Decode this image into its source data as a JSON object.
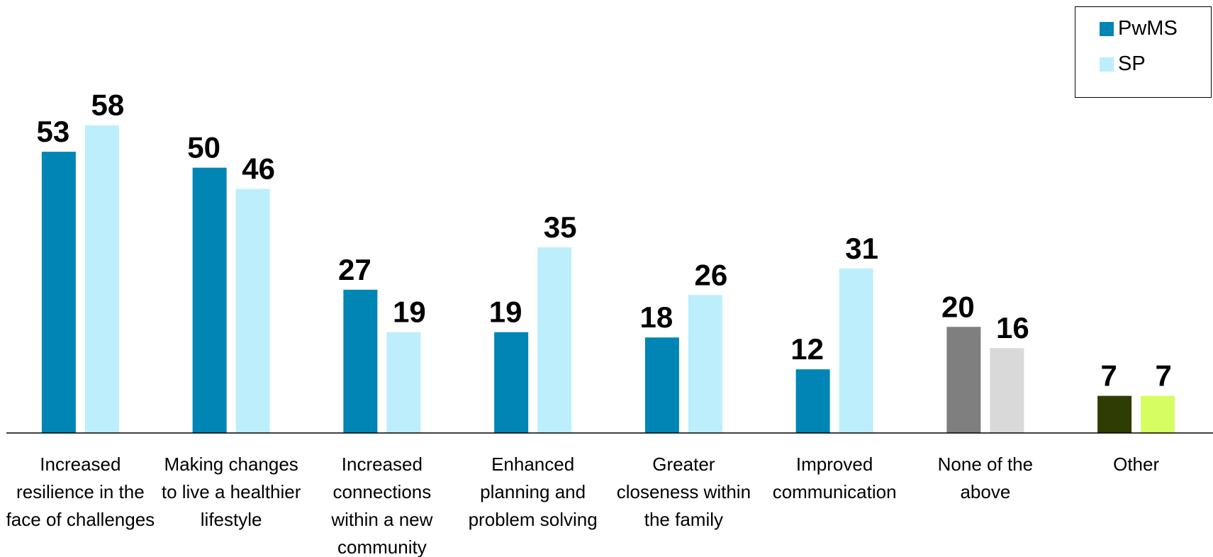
{
  "chart_data": {
    "type": "bar",
    "categories": [
      "Increased resilience in the face of challenges",
      "Making changes to live a healthier lifestyle",
      "Increased connections within a new community",
      "Enhanced planning and problem solving",
      "Greater closeness within the family",
      "Improved communication",
      "None of the above",
      "Other"
    ],
    "series": [
      {
        "name": "PwMS",
        "color": "#0085b5",
        "colors": [
          "#0085b5",
          "#0085b5",
          "#0085b5",
          "#0085b5",
          "#0085b5",
          "#0085b5",
          "#7f7f7f",
          "#2f3d05"
        ],
        "values": [
          53,
          50,
          27,
          19,
          18,
          12,
          20,
          7
        ]
      },
      {
        "name": "SP",
        "color": "#bdeefc",
        "colors": [
          "#bdeefc",
          "#bdeefc",
          "#bdeefc",
          "#bdeefc",
          "#bdeefc",
          "#bdeefc",
          "#d9d9d9",
          "#d6fd62"
        ],
        "values": [
          58,
          46,
          19,
          35,
          26,
          31,
          16,
          7
        ]
      }
    ],
    "ylim": [
      0,
      80
    ],
    "legend": "top-right"
  }
}
